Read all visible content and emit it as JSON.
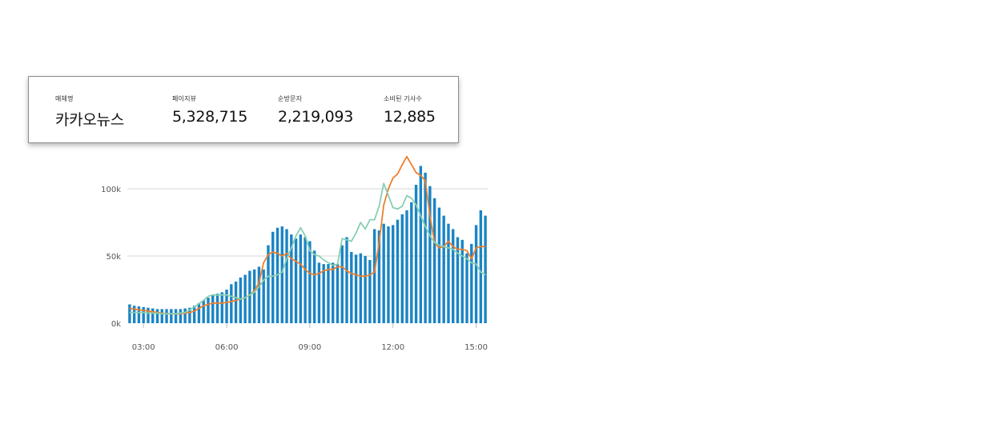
{
  "summary": {
    "items": [
      {
        "label": "매체명",
        "value": "카카오뉴스"
      },
      {
        "label": "페이지뷰",
        "value": "5,328,715"
      },
      {
        "label": "순방문자",
        "value": "2,219,093"
      },
      {
        "label": "소비된 기사수",
        "value": "12,885"
      }
    ]
  },
  "colors": {
    "bars": "#1a84c4",
    "line_orange": "#ee7f2d",
    "line_green": "#88cfb2",
    "grid": "#d6d6d6"
  },
  "chart_data": {
    "type": "bar",
    "title": "",
    "xlabel": "",
    "ylabel": "",
    "ylim": [
      0,
      125000
    ],
    "y_ticks": [
      {
        "value": 0,
        "label": "0k"
      },
      {
        "value": 50000,
        "label": "50k"
      },
      {
        "value": 100000,
        "label": "100k"
      }
    ],
    "x_ticks": [
      {
        "time": "03:00",
        "label": "03:00"
      },
      {
        "time": "06:00",
        "label": "06:00"
      },
      {
        "time": "09:00",
        "label": "09:00"
      },
      {
        "time": "12:00",
        "label": "12:00"
      },
      {
        "time": "15:00",
        "label": "15:00"
      }
    ],
    "x": [
      "02:30",
      "02:40",
      "02:50",
      "03:00",
      "03:10",
      "03:20",
      "03:30",
      "03:40",
      "03:50",
      "04:00",
      "04:10",
      "04:20",
      "04:30",
      "04:40",
      "04:50",
      "05:00",
      "05:10",
      "05:20",
      "05:30",
      "05:40",
      "05:50",
      "06:00",
      "06:10",
      "06:20",
      "06:30",
      "06:40",
      "06:50",
      "07:00",
      "07:10",
      "07:20",
      "07:30",
      "07:40",
      "07:50",
      "08:00",
      "08:10",
      "08:20",
      "08:30",
      "08:40",
      "08:50",
      "09:00",
      "09:10",
      "09:20",
      "09:30",
      "09:40",
      "09:50",
      "10:00",
      "10:10",
      "10:20",
      "10:30",
      "10:40",
      "10:50",
      "11:00",
      "11:10",
      "11:20",
      "11:30",
      "11:40",
      "11:50",
      "12:00",
      "12:10",
      "12:20",
      "12:30",
      "12:40",
      "12:50",
      "13:00",
      "13:10",
      "13:20",
      "13:30",
      "13:40",
      "13:50",
      "14:00",
      "14:10",
      "14:20",
      "14:30",
      "14:40",
      "14:50",
      "15:00",
      "15:10",
      "15:20"
    ],
    "series": [
      {
        "kind": "bar",
        "values": [
          14000,
          13000,
          12500,
          12000,
          11500,
          11000,
          10500,
          10500,
          10500,
          10500,
          10500,
          10500,
          11000,
          11500,
          13000,
          15000,
          17000,
          19000,
          21000,
          22000,
          23000,
          25000,
          29000,
          31000,
          34000,
          36000,
          39000,
          40000,
          42000,
          40000,
          58000,
          68000,
          71000,
          72000,
          70000,
          66000,
          63000,
          66000,
          64000,
          61000,
          54000,
          45000,
          44000,
          44000,
          45000,
          44000,
          58000,
          64000,
          53000,
          51000,
          52000,
          50000,
          47000,
          70000,
          69000,
          74000,
          72000,
          73000,
          77000,
          81000,
          84000,
          90000,
          103000,
          117000,
          112000,
          102000,
          93000,
          86000,
          80000,
          74000,
          70000,
          64000,
          62000,
          52000,
          59000,
          73000,
          84000,
          80000
        ]
      },
      {
        "kind": "line",
        "color": "orange",
        "values": [
          11000,
          10500,
          10000,
          9500,
          9000,
          8500,
          8000,
          7500,
          7000,
          7000,
          7000,
          7000,
          7500,
          8000,
          9000,
          11000,
          13000,
          14000,
          15000,
          15000,
          15000,
          15500,
          16000,
          17000,
          18000,
          19000,
          21000,
          24000,
          30000,
          45000,
          51000,
          53000,
          52000,
          50000,
          52000,
          48000,
          46000,
          44000,
          40000,
          37000,
          36000,
          37000,
          39000,
          40000,
          40000,
          42000,
          42000,
          39000,
          37000,
          36000,
          35000,
          35000,
          36000,
          38000,
          60000,
          88000,
          100000,
          108000,
          111000,
          118000,
          124000,
          118000,
          112000,
          110000,
          106000,
          80000,
          60000,
          56000,
          57000,
          61000,
          57000,
          55000,
          55000,
          54000,
          48000,
          56000,
          57000,
          57000
        ]
      },
      {
        "kind": "line",
        "color": "green",
        "values": [
          8000,
          8000,
          8000,
          8000,
          7500,
          7500,
          7500,
          7000,
          7000,
          7000,
          7000,
          7500,
          8000,
          10000,
          12000,
          14500,
          17000,
          20000,
          21000,
          21000,
          21000,
          21000,
          20000,
          19000,
          18000,
          19000,
          21000,
          23000,
          27000,
          32000,
          35000,
          35000,
          36000,
          38000,
          48000,
          56000,
          65000,
          71000,
          65000,
          54000,
          51000,
          50000,
          47000,
          45000,
          43000,
          44000,
          63000,
          62000,
          61000,
          67000,
          75000,
          70000,
          77000,
          77000,
          87000,
          104000,
          95000,
          86000,
          85000,
          87000,
          95000,
          93000,
          88000,
          80000,
          72000,
          65000,
          60000,
          58000,
          57000,
          56000,
          55000,
          52000,
          50000,
          48000,
          45000,
          44000,
          38000,
          36000
        ]
      }
    ],
    "grid": true,
    "legend": "none"
  }
}
